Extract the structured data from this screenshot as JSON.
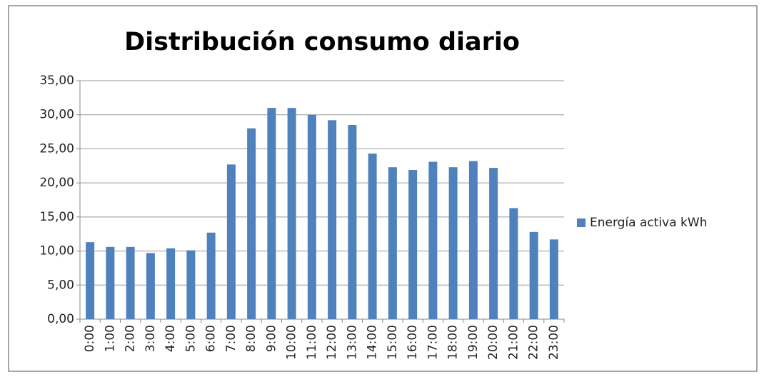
{
  "chart_data": {
    "type": "bar",
    "title": "Distribución consumo diario",
    "categories": [
      "0:00",
      "1:00",
      "2:00",
      "3:00",
      "4:00",
      "5:00",
      "6:00",
      "7:00",
      "8:00",
      "9:00",
      "10:00",
      "11:00",
      "12:00",
      "13:00",
      "14:00",
      "15:00",
      "16:00",
      "17:00",
      "18:00",
      "19:00",
      "20:00",
      "21:00",
      "22:00",
      "23:00"
    ],
    "series": [
      {
        "name": "Energía activa kWh",
        "color": "#4f81bd",
        "values": [
          11.3,
          10.6,
          10.6,
          9.7,
          10.4,
          10.1,
          12.7,
          22.7,
          28.0,
          31.0,
          31.0,
          30.0,
          29.2,
          28.5,
          24.3,
          22.3,
          21.9,
          23.1,
          22.3,
          23.2,
          22.2,
          16.3,
          12.8,
          11.7
        ]
      }
    ],
    "ylim": [
      0,
      35
    ],
    "yticks": [
      {
        "value": 0,
        "label": "0,00"
      },
      {
        "value": 5,
        "label": "5,00"
      },
      {
        "value": 10,
        "label": "10,00"
      },
      {
        "value": 15,
        "label": "15,00"
      },
      {
        "value": 20,
        "label": "20,00"
      },
      {
        "value": 25,
        "label": "25,00"
      },
      {
        "value": 30,
        "label": "30,00"
      },
      {
        "value": 35,
        "label": "35,00"
      }
    ],
    "grid": true,
    "legend": "right"
  }
}
